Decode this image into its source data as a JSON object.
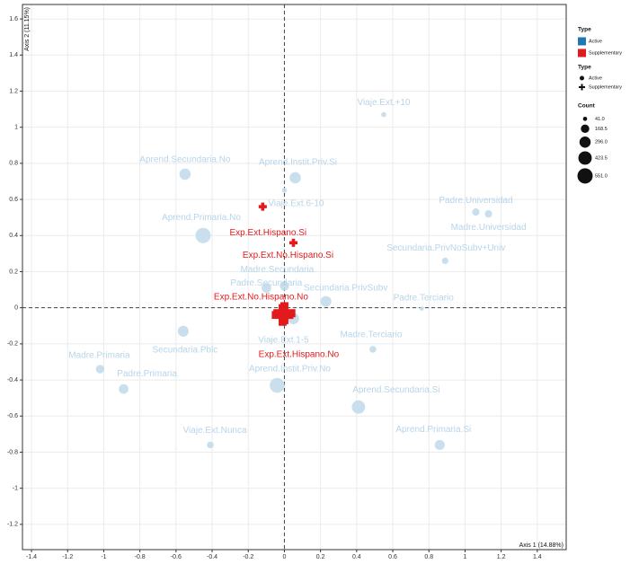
{
  "chart_data": {
    "type": "scatter",
    "x_label": "Axis 1 (14.88%)",
    "y_label": "Axis 2 (11.15%)",
    "xlim": [
      -1.45,
      1.56
    ],
    "ylim": [
      -1.34,
      1.68
    ],
    "xticks": [
      -1.4,
      -1.2,
      -1,
      -0.8,
      -0.6,
      -0.4,
      -0.2,
      0,
      0.2,
      0.4,
      0.6,
      0.8,
      1,
      1.2,
      1.4
    ],
    "yticks": [
      -1.2,
      -1,
      -0.8,
      -0.6,
      -0.4,
      -0.2,
      0,
      0.2,
      0.4,
      0.6,
      0.8,
      1,
      1.2,
      1.4,
      1.6
    ],
    "grid": true,
    "color_legend_title": "Type",
    "shape_legend_title": "Type",
    "size_legend_title": "Count",
    "size_legend": [
      {
        "value": 41,
        "label": "41.0"
      },
      {
        "value": 168.5,
        "label": "168.5"
      },
      {
        "value": 296,
        "label": "296.0"
      },
      {
        "value": 423.5,
        "label": "423.5"
      },
      {
        "value": 551,
        "label": "551.0"
      }
    ],
    "series": [
      {
        "name": "Active",
        "color": "#1f78b4",
        "point_color": "#c3dcec",
        "shape": "circle",
        "labels": [
          "Viaje.Ext.+10",
          "Aprend.Secundaria.No",
          "Aprend.Instit.Priv.Si",
          "Viaje.Ext.6-10",
          "Padre.Universidad",
          "Madre.Universidad",
          "Aprend.Primaria.No",
          "Secundaria.PrivNoSubv+Univ",
          "Madre.Secundaria",
          "Padre.Secundaria",
          "Secundaria.PrivSubv",
          "Padre.Terciario",
          "Viaje.Ext.1-5",
          "Secundaria.Pblc",
          "Madre.Terciario",
          "Madre.Primaria",
          "Padre.Primaria",
          "Aprend.Instit.Priv.No",
          "Aprend.Secundaria.Si",
          "Viaje.Ext.Nunca",
          "Aprend.Primaria.Si"
        ],
        "x": [
          0.55,
          -0.55,
          0.06,
          0.0,
          1.06,
          1.13,
          -0.45,
          0.89,
          0.0,
          -0.1,
          0.23,
          0.76,
          0.05,
          -0.56,
          0.49,
          -1.02,
          -0.89,
          -0.04,
          0.41,
          -0.41,
          0.86
        ],
        "values": [
          1.07,
          0.74,
          0.72,
          0.65,
          0.53,
          0.52,
          0.4,
          0.26,
          0.12,
          0.11,
          0.035,
          -0.005,
          -0.06,
          -0.13,
          -0.23,
          -0.34,
          -0.45,
          -0.43,
          -0.55,
          -0.76,
          -0.76
        ],
        "sizes": [
          60,
          300,
          300,
          60,
          130,
          130,
          551,
          100,
          200,
          220,
          280,
          41,
          300,
          280,
          110,
          170,
          220,
          520,
          420,
          110,
          240
        ]
      },
      {
        "name": "Supplementary",
        "color": "#e31a1c",
        "point_color": "#e31a1c",
        "shape": "cross",
        "labels": [
          "Exp.Ext.Hispano.Si",
          "Exp.Ext.No.Hispano.Si",
          "Exp.Ext.No.Hispano.No",
          "Exp.Ext.Hispano.No"
        ],
        "x": [
          -0.12,
          0.05,
          0.0,
          -0.01
        ],
        "values": [
          0.56,
          0.36,
          -0.03,
          -0.04
        ],
        "sizes": [
          41,
          41,
          520,
          500
        ]
      }
    ]
  }
}
